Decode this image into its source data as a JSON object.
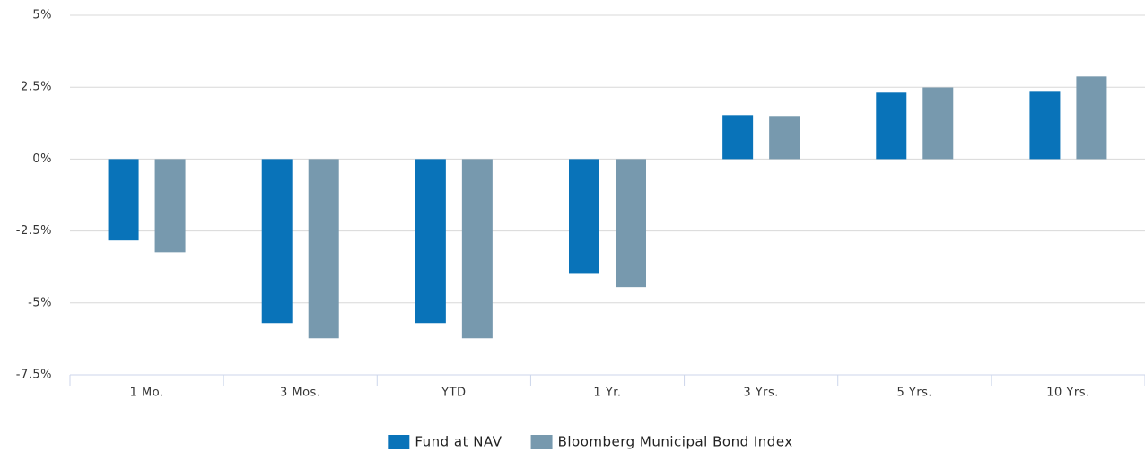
{
  "chart_data": {
    "type": "bar",
    "categories": [
      "1 Mo.",
      "3 Mos.",
      "YTD",
      "1 Yr.",
      "3 Yrs.",
      "5 Yrs.",
      "10 Yrs."
    ],
    "series": [
      {
        "name": "Fund at NAV",
        "color": "#0973b9",
        "values": [
          -2.83,
          -5.7,
          -5.7,
          -3.96,
          1.53,
          2.31,
          2.34
        ]
      },
      {
        "name": "Bloomberg Municipal Bond Index",
        "color": "#7799ae",
        "values": [
          -3.24,
          -6.23,
          -6.23,
          -4.45,
          1.5,
          2.49,
          2.87
        ]
      }
    ],
    "ylim": [
      -7.5,
      5
    ],
    "yticks": [
      {
        "value": -7.5,
        "label": "-7.5%"
      },
      {
        "value": -5,
        "label": "-5%"
      },
      {
        "value": -2.5,
        "label": "-2.5%"
      },
      {
        "value": 0,
        "label": "0%"
      },
      {
        "value": 2.5,
        "label": "2.5%"
      },
      {
        "value": 5,
        "label": "5%"
      }
    ],
    "grid": true,
    "legend": "bottom"
  }
}
